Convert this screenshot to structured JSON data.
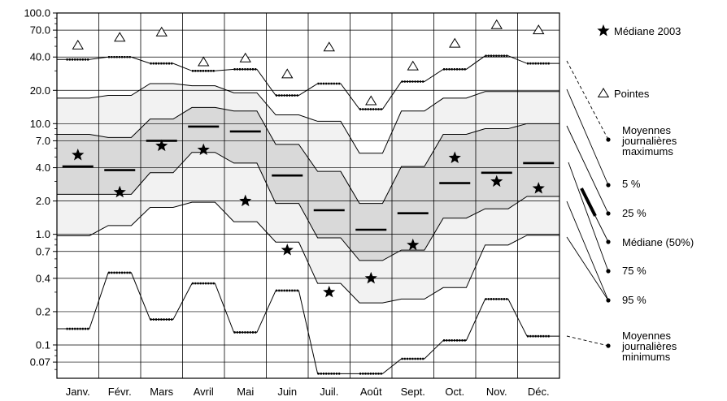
{
  "chart_data": {
    "type": "line",
    "y_scale": "log",
    "ylim": [
      0.05,
      100
    ],
    "categories": [
      "Janv.",
      "Févr.",
      "Mars",
      "Avril",
      "Mai",
      "Juin",
      "Juil.",
      "Août",
      "Sept.",
      "Oct.",
      "Nov.",
      "Déc."
    ],
    "y_ticks": [
      100,
      70,
      40,
      20,
      10,
      7,
      4,
      2,
      1,
      0.7,
      0.4,
      0.2,
      0.1,
      0.07
    ],
    "y_tick_labels": [
      "100.0",
      "70.0",
      "40.0",
      "20.0",
      "10.0",
      "7.0",
      "4.0",
      "2.0",
      "1.0",
      "0.7",
      "0.4",
      "0.2",
      "0.1",
      "0.07"
    ],
    "series": [
      {
        "name": "Pointes",
        "values": [
          51,
          60,
          67,
          36,
          39,
          28,
          49,
          16,
          33,
          53,
          78,
          70
        ]
      },
      {
        "name": "Moyennes journalières maximums",
        "values": [
          38,
          40,
          35,
          30,
          31,
          18,
          23,
          13.5,
          24,
          31,
          41,
          35
        ]
      },
      {
        "name": "5 %",
        "values": [
          17,
          18,
          23,
          22,
          19,
          12,
          10.5,
          5.4,
          13,
          17,
          19.5,
          19.5
        ]
      },
      {
        "name": "25 %",
        "values": [
          8,
          7.5,
          11,
          14,
          13,
          6.5,
          3.7,
          1.9,
          4.1,
          8,
          9,
          10
        ]
      },
      {
        "name": "Médiane (50%)",
        "values": [
          4.1,
          3.8,
          7,
          9.4,
          8.5,
          3.4,
          1.65,
          1.1,
          1.55,
          2.9,
          3.6,
          4.4
        ]
      },
      {
        "name": "75 %",
        "values": [
          2.3,
          2.3,
          3.6,
          5.5,
          4.4,
          1.9,
          0.93,
          0.58,
          0.72,
          1.4,
          1.7,
          2.2
        ]
      },
      {
        "name": "95 %",
        "values": [
          0.97,
          1.2,
          1.75,
          1.95,
          1.3,
          0.85,
          0.36,
          0.24,
          0.26,
          0.33,
          0.8,
          0.98
        ]
      },
      {
        "name": "Moyennes journalières minimums",
        "values": [
          0.14,
          0.45,
          0.17,
          0.36,
          0.13,
          0.31,
          0.055,
          0.055,
          0.075,
          0.11,
          0.26,
          0.12
        ]
      },
      {
        "name": "Médiane 2003",
        "values": [
          5.2,
          2.4,
          6.3,
          5.8,
          2.0,
          0.72,
          0.3,
          0.4,
          0.8,
          4.9,
          3.0,
          2.6
        ]
      }
    ],
    "legend": [
      {
        "label": "Médiane  2003",
        "symbol": "star"
      },
      {
        "label": "Pointes",
        "symbol": "triangle"
      },
      {
        "label": "Moyennes\njournalières\nmaximums",
        "symbol": "dot"
      },
      {
        "label": " 5 %",
        "symbol": "dot"
      },
      {
        "label": "25 %",
        "symbol": "dot"
      },
      {
        "label": "Médiane (50%)",
        "symbol": "dot"
      },
      {
        "label": "75 %",
        "symbol": "dot"
      },
      {
        "label": "95 %",
        "symbol": "dot"
      },
      {
        "label": "Moyennes\njournalières\nminimums",
        "symbol": "dot"
      }
    ],
    "legend_placement": "right",
    "colors": {
      "outer_band": "#f2f2f2",
      "inner_band": "#d9d9d9",
      "line": "#000000",
      "grid": "#000000"
    }
  }
}
